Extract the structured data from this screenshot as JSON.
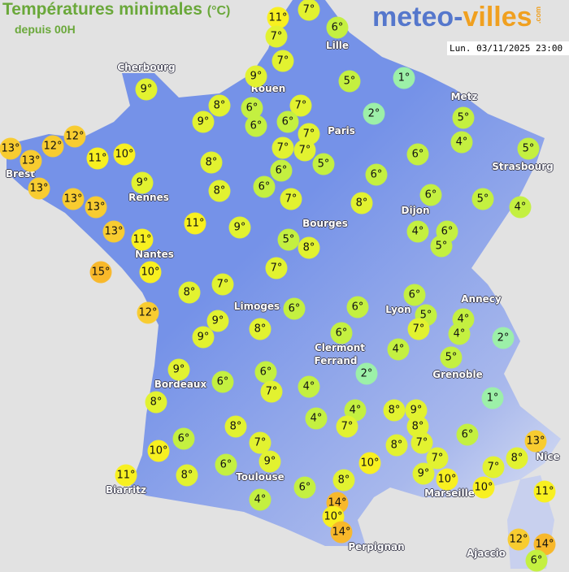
{
  "header": {
    "title": "Températures minimales",
    "unit": "(°C)",
    "subtitle": "depuis 00H",
    "logo_main": "meteo-",
    "logo_accent": "villes",
    "logo_suffix": ".com",
    "datetime": "Lun. 03/11/2025 23:00"
  },
  "colors": {
    "background": "#e2e2e2",
    "land": "#7592e8",
    "cold": "#9cf0a8",
    "cool": "#c4f040",
    "mild": "#e2f230",
    "warm": "#f8f020",
    "hot": "#f8cc30",
    "veryhot": "#f8b82a"
  },
  "cities": [
    "Cherbourg",
    "Rouen",
    "Lille",
    "Paris",
    "Metz",
    "Strasbourg",
    "Brest",
    "Rennes",
    "Nantes",
    "Bourges",
    "Dijon",
    "Limoges",
    "Lyon",
    "Annecy",
    "Clermont",
    "Ferrand",
    "Grenoble",
    "Bordeaux",
    "Toulouse",
    "Biarritz",
    "Marseille",
    "Nice",
    "Perpignan",
    "Ajaccio"
  ],
  "markers": [
    11,
    7,
    6,
    7,
    7,
    9,
    5,
    1,
    9,
    8,
    6,
    7,
    6,
    6,
    7,
    2,
    5,
    9,
    12,
    13,
    13,
    12,
    11,
    10,
    7,
    7,
    5,
    6,
    4,
    5,
    8,
    6,
    6,
    13,
    9,
    8,
    6,
    7,
    13,
    13,
    8,
    6,
    5,
    4,
    11,
    9,
    13,
    11,
    4,
    6,
    5,
    5,
    8,
    15,
    10,
    7,
    8,
    7,
    12,
    9,
    9,
    8,
    6,
    6,
    6,
    5,
    7,
    4,
    4,
    2,
    6,
    4,
    5,
    9,
    6,
    6,
    7,
    4,
    2,
    1,
    8,
    4,
    8,
    9,
    4,
    7,
    8,
    8,
    6,
    6,
    7,
    7,
    8,
    13,
    8,
    10,
    9,
    6,
    10,
    7,
    9,
    7,
    10,
    11,
    8,
    8,
    10,
    11,
    4,
    6,
    14,
    10,
    14,
    12,
    14,
    6
  ]
}
